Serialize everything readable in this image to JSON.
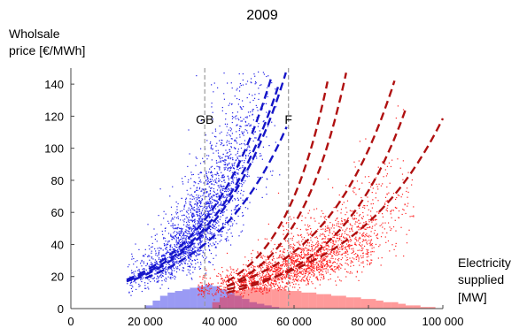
{
  "chart_data": {
    "type": "scatter",
    "title": "2009",
    "ylabel_line1": "Wholsale",
    "ylabel_line2": "price [€/MWh]",
    "xlabel_line1": "Electricity",
    "xlabel_line2": "supplied",
    "xlabel_line3": "[MW]",
    "xlim": [
      0,
      100000
    ],
    "ylim": [
      0,
      150
    ],
    "xticks": [
      0,
      20000,
      40000,
      60000,
      80000,
      100000
    ],
    "xtick_labels": [
      "0",
      "20 000",
      "40 000",
      "60 000",
      "80 000",
      "100 000"
    ],
    "yticks": [
      0,
      20,
      40,
      60,
      80,
      100,
      120,
      140
    ],
    "ytick_labels": [
      "0",
      "20",
      "40",
      "60",
      "80",
      "100",
      "120",
      "140"
    ],
    "grid": false,
    "annotations": [
      {
        "text": "GB",
        "x": 36000,
        "y": 118,
        "vline": true,
        "color": "#999999"
      },
      {
        "text": "F",
        "x": 58500,
        "y": 118,
        "vline": true,
        "color": "#999999"
      }
    ],
    "series": [
      {
        "color": "#1f1fe6",
        "fit_color": "#1515c8",
        "scatter_cloud": {
          "x_start": 15000,
          "x_end": 56000,
          "y_at_start": 18,
          "k": 5.5e-05,
          "spread": 0.28
        },
        "fit_curves": [
          {
            "x_start": 15000,
            "x_end": 54000,
            "y_at_start": 18,
            "k": 5.35e-05
          },
          {
            "x_start": 15000,
            "x_end": 56000,
            "y_at_start": 17,
            "k": 5.15e-05
          },
          {
            "x_start": 17000,
            "x_end": 58500,
            "y_at_start": 18,
            "k": 5.15e-05
          },
          {
            "x_start": 20000,
            "x_end": 58000,
            "y_at_start": 19,
            "k": 4.7e-05
          }
        ],
        "histogram": {
          "bin_starts": [
            20000,
            22000,
            24000,
            26000,
            28000,
            30000,
            32000,
            34000,
            36000,
            38000,
            40000,
            42000,
            44000,
            46000,
            48000,
            50000,
            52000,
            54000
          ],
          "bin_width": 2000,
          "heights": [
            2,
            5,
            8,
            10,
            11,
            12,
            13,
            14,
            15,
            14,
            12,
            10,
            8,
            6,
            4,
            3,
            2,
            1
          ]
        }
      },
      {
        "color": "#ff2020",
        "fit_color": "#b01010",
        "scatter_cloud": {
          "x_start": 34000,
          "x_end": 92000,
          "y_at_start": 12,
          "k": 3.05e-05,
          "spread": 0.3
        },
        "fit_curves": [
          {
            "x_start": 42000,
            "x_end": 74000,
            "y_at_start": 14,
            "k": 7.35e-05
          },
          {
            "x_start": 42000,
            "x_end": 69000,
            "y_at_start": 17,
            "k": 7.85e-05
          },
          {
            "x_start": 42000,
            "x_end": 87000,
            "y_at_start": 14,
            "k": 5.15e-05
          },
          {
            "x_start": 42000,
            "x_end": 90000,
            "y_at_start": 10,
            "k": 5.25e-05
          },
          {
            "x_start": 42000,
            "x_end": 100000,
            "y_at_start": 12,
            "k": 3.95e-05
          }
        ],
        "histogram": {
          "bin_starts": [
            38000,
            40000,
            42000,
            44000,
            46000,
            48000,
            50000,
            52000,
            54000,
            56000,
            58000,
            60000,
            62000,
            64000,
            66000,
            68000,
            70000,
            72000,
            74000,
            76000,
            78000,
            80000,
            82000,
            84000,
            86000,
            88000,
            90000,
            92000,
            94000,
            96000
          ],
          "bin_width": 2000,
          "heights": [
            4,
            7,
            9,
            11,
            12,
            13,
            13,
            13,
            12,
            12,
            11,
            11,
            10,
            10,
            9,
            9,
            8,
            8,
            7,
            7,
            6,
            6,
            5,
            4,
            4,
            3,
            2,
            2,
            1,
            1
          ]
        }
      }
    ]
  }
}
